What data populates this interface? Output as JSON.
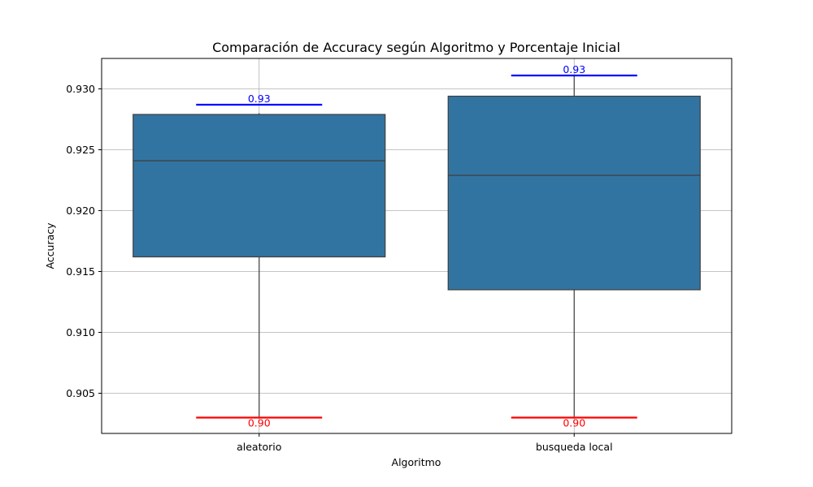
{
  "chart_data": {
    "type": "box",
    "title": "Comparación de Accuracy según Algoritmo y Porcentaje Inicial",
    "xlabel": "Algoritmo",
    "ylabel": "Accuracy",
    "ylim": [
      0.9017,
      0.9325
    ],
    "yticks": [
      0.905,
      0.91,
      0.915,
      0.92,
      0.925,
      0.93
    ],
    "ytick_labels": [
      "0.905",
      "0.910",
      "0.915",
      "0.920",
      "0.925",
      "0.930"
    ],
    "grid": true,
    "box_color": "#3274a1",
    "box_edge_color": "#3f3f3f",
    "max_line_color": "#0000ff",
    "min_line_color": "#ff0000",
    "categories": [
      "aleatorio",
      "busqueda local"
    ],
    "boxes": [
      {
        "category": "aleatorio",
        "whisker_low": 0.903,
        "q1": 0.9162,
        "median": 0.9241,
        "q3": 0.9279,
        "whisker_high": 0.928,
        "max_value": 0.9287,
        "min_value": 0.903,
        "max_label": "0.93",
        "min_label": "0.90"
      },
      {
        "category": "busqueda local",
        "whisker_low": 0.903,
        "q1": 0.9135,
        "median": 0.9229,
        "q3": 0.9294,
        "whisker_high": 0.9311,
        "max_value": 0.9311,
        "min_value": 0.903,
        "max_label": "0.93",
        "min_label": "0.90"
      }
    ]
  }
}
